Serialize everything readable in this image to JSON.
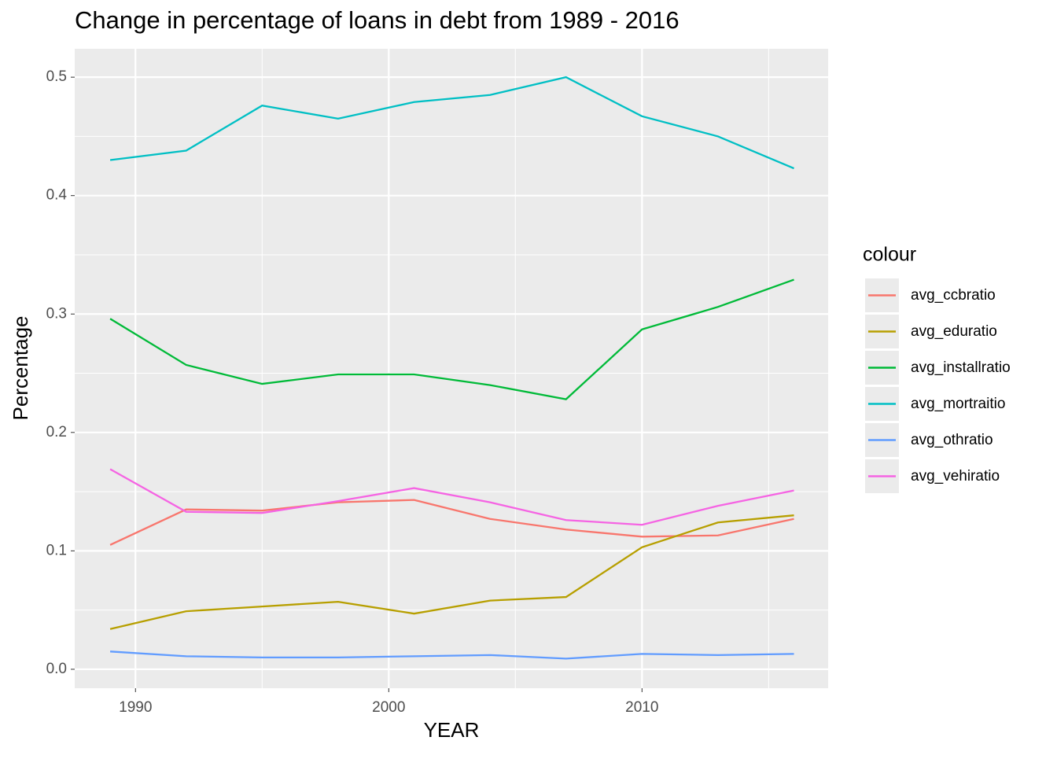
{
  "chart_data": {
    "type": "line",
    "title": "Change in percentage of loans in debt from 1989 - 2016",
    "x_label": "YEAR",
    "y_label": "Percentage",
    "legend_title": "colour",
    "x": [
      1989,
      1992,
      1995,
      1998,
      2001,
      2004,
      2007,
      2010,
      2013,
      2016
    ],
    "series": [
      {
        "name": "avg_ccbratio",
        "color": "#f8766d",
        "values": [
          0.105,
          0.135,
          0.134,
          0.141,
          0.143,
          0.127,
          0.118,
          0.112,
          0.113,
          0.127
        ]
      },
      {
        "name": "avg_eduratio",
        "color": "#b79f00",
        "values": [
          0.034,
          0.049,
          0.053,
          0.057,
          0.047,
          0.058,
          0.061,
          0.103,
          0.124,
          0.13
        ]
      },
      {
        "name": "avg_installratio",
        "color": "#00ba38",
        "values": [
          0.296,
          0.257,
          0.241,
          0.249,
          0.249,
          0.24,
          0.228,
          0.287,
          0.306,
          0.329
        ]
      },
      {
        "name": "avg_mortraitio",
        "color": "#00bfc4",
        "values": [
          0.43,
          0.438,
          0.476,
          0.465,
          0.479,
          0.485,
          0.5,
          0.467,
          0.45,
          0.423
        ]
      },
      {
        "name": "avg_othratio",
        "color": "#619cff",
        "values": [
          0.015,
          0.011,
          0.01,
          0.01,
          0.011,
          0.012,
          0.009,
          0.013,
          0.012,
          0.013
        ]
      },
      {
        "name": "avg_vehiratio",
        "color": "#f564e3",
        "values": [
          0.169,
          0.133,
          0.132,
          0.142,
          0.153,
          0.141,
          0.126,
          0.122,
          0.138,
          0.151
        ]
      }
    ],
    "xlim": [
      1987.6,
      2017.35
    ],
    "ylim": [
      -0.016,
      0.524
    ],
    "xticks": [
      1990,
      2000,
      2010
    ],
    "yticks": [
      {
        "value": 0,
        "label": "0.0"
      },
      0.1,
      0.2,
      0.3,
      0.4,
      0.5
    ],
    "grid": true,
    "minor_grid": true,
    "legend": "right"
  }
}
